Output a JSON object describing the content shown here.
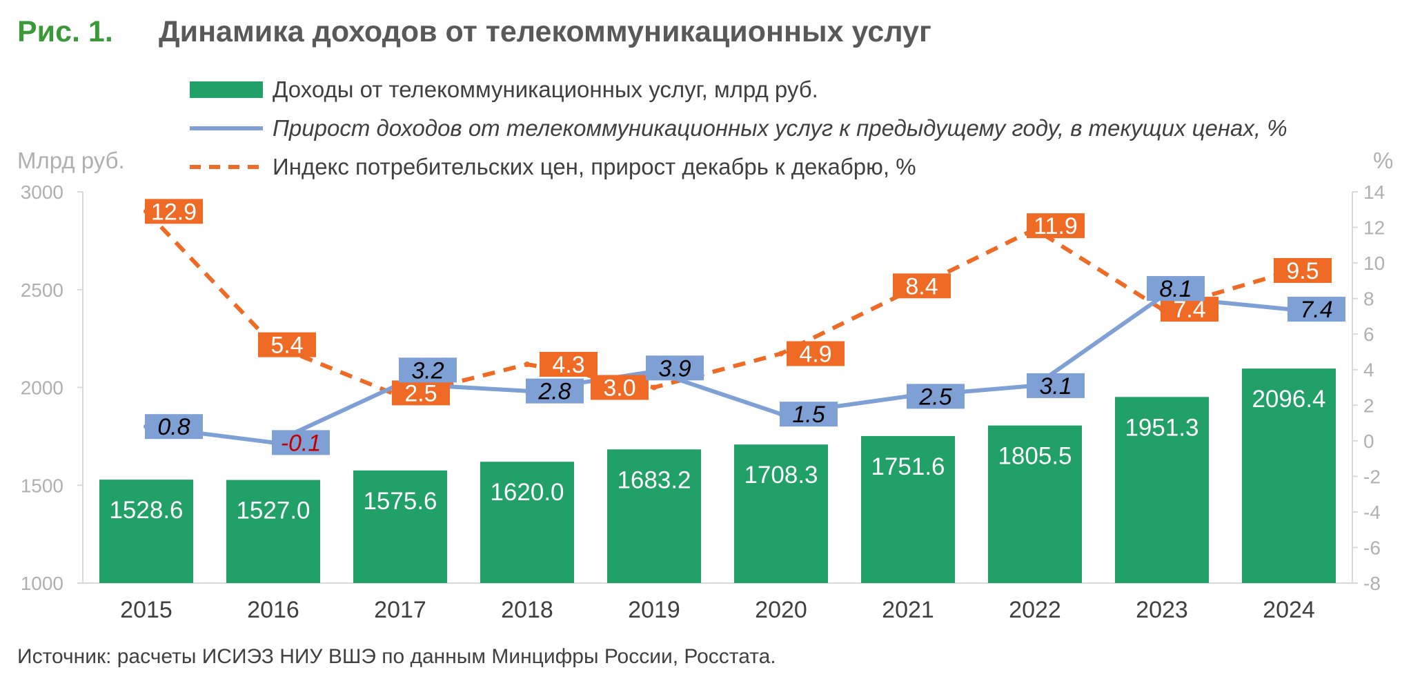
{
  "header": {
    "figure_number": "Рис. 1.",
    "title": "Динамика доходов от телекоммуникационных услуг"
  },
  "source_note": "Источник: расчеты ИСИЭЗ НИУ ВШЭ по данным Минцифры России, Росстата.",
  "colors": {
    "revenue_bar": "#21a067",
    "growth_line": "#7ea0d4",
    "cpi_line": "#ee6a25",
    "negative_label": "#c00000",
    "axis_text": "#b0b0b0"
  },
  "chart_data": {
    "type": "bar",
    "combo": "bar + line + line (dual axis)",
    "categories": [
      "2015",
      "2016",
      "2017",
      "2018",
      "2019",
      "2020",
      "2021",
      "2022",
      "2023",
      "2024"
    ],
    "ylabel_left": "Млрд руб.",
    "ylabel_right": "%",
    "ylim_left": [
      1000,
      3000
    ],
    "yticks_left": [
      1000,
      1500,
      2000,
      2500,
      3000
    ],
    "ylim_right": [
      -8,
      14
    ],
    "yticks_right": [
      -8,
      -6,
      -4,
      -2,
      0,
      2,
      4,
      6,
      8,
      10,
      12,
      14
    ],
    "grid": false,
    "legend_position": "top",
    "series": [
      {
        "name": "Доходы от телекоммуникационных услуг, млрд руб.",
        "kind": "bar",
        "axis": "left",
        "values": [
          1528.6,
          1527.0,
          1575.6,
          1620.0,
          1683.2,
          1708.3,
          1751.6,
          1805.5,
          1951.3,
          2096.4
        ],
        "labels": [
          "1528.6",
          "1527.0",
          "1575.6",
          "1620.0",
          "1683.2",
          "1708.3",
          "1751.6",
          "1805.5",
          "1951.3",
          "2096.4"
        ]
      },
      {
        "name": "Прирост доходов от телекоммуникационных услуг к предыдущему году, в текущих ценах, %",
        "kind": "line",
        "style": "solid",
        "axis": "right",
        "values": [
          0.8,
          -0.1,
          3.2,
          2.8,
          3.9,
          1.5,
          2.5,
          3.1,
          8.1,
          7.4
        ],
        "labels": [
          "0.8",
          "-0.1",
          "3.2",
          "2.8",
          "3.9",
          "1.5",
          "2.5",
          "3.1",
          "8.1",
          "7.4"
        ]
      },
      {
        "name": "Индекс потребительских цен, прирост декабрь к декабрю, %",
        "kind": "line",
        "style": "dashed",
        "axis": "right",
        "values": [
          12.9,
          5.4,
          2.5,
          4.3,
          3.0,
          4.9,
          8.4,
          11.9,
          7.4,
          9.5
        ],
        "labels": [
          "12.9",
          "5.4",
          "2.5",
          "4.3",
          "3.0",
          "4.9",
          "8.4",
          "11.9",
          "7.4",
          "9.5"
        ]
      }
    ]
  }
}
